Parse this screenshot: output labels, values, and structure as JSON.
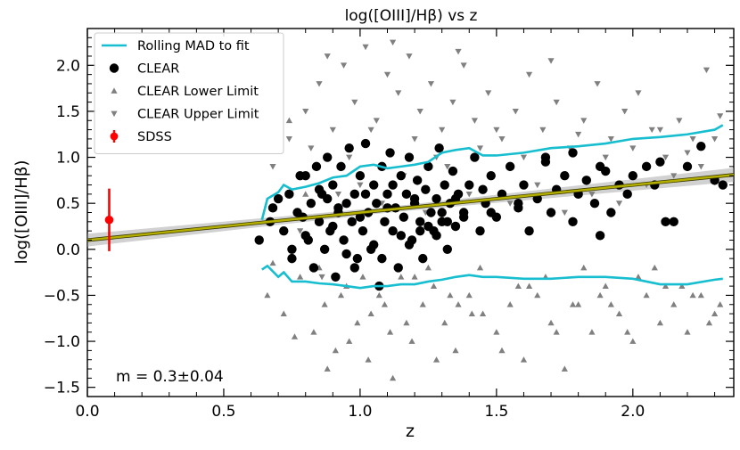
{
  "chart_data": {
    "type": "scatter",
    "title": "log([OIII]/Hβ) vs z",
    "xlabel": "z",
    "ylabel": "log([OIII]/Hβ)",
    "xlim": [
      0.0,
      2.37
    ],
    "ylim": [
      -1.6,
      2.4
    ],
    "x_ticks": [
      0.0,
      0.5,
      1.0,
      1.5,
      2.0
    ],
    "x_tick_labels": [
      "0.0",
      "0.5",
      "1.0",
      "1.5",
      "2.0"
    ],
    "y_ticks": [
      -1.5,
      -1.0,
      -0.5,
      0.0,
      0.5,
      1.0,
      1.5,
      2.0
    ],
    "y_tick_labels": [
      "−1.5",
      "−1.0",
      "−0.5",
      "0.0",
      "0.5",
      "1.0",
      "1.5",
      "2.0"
    ],
    "grid": false,
    "legend_placement": "top-left",
    "annotation": "m = 0.3±0.04",
    "colors": {
      "clear": "#000000",
      "limits": "#808080",
      "rolling_mad": "#17becf",
      "fit": "#b5b000",
      "fit_band": "#9a9a9a",
      "sdss": "#ff0000"
    },
    "legend": [
      {
        "label": "Rolling MAD to fit",
        "marker": "line",
        "color": "#17becf"
      },
      {
        "label": "CLEAR",
        "marker": "circle",
        "color": "#000000"
      },
      {
        "label": "CLEAR Lower Limit",
        "marker": "triangle-up",
        "color": "#808080"
      },
      {
        "label": "CLEAR Upper Limit",
        "marker": "triangle-down",
        "color": "#808080"
      },
      {
        "label": "SDSS",
        "marker": "errorbar",
        "color": "#ff0000"
      }
    ],
    "fit_line": {
      "slope": 0.3,
      "slope_err": 0.04,
      "x": [
        0.0,
        2.37
      ],
      "y": [
        0.1,
        0.81
      ]
    },
    "sdss_point": {
      "x": 0.08,
      "y": 0.32,
      "yerr_low": 0.34,
      "yerr_high": 0.34
    },
    "rolling_mad_upper": {
      "x": [
        0.64,
        0.66,
        0.7,
        0.72,
        0.75,
        0.8,
        0.85,
        0.9,
        0.95,
        1.0,
        1.05,
        1.1,
        1.15,
        1.2,
        1.25,
        1.3,
        1.35,
        1.4,
        1.45,
        1.5,
        1.6,
        1.7,
        1.8,
        1.9,
        2.0,
        2.1,
        2.2,
        2.3,
        2.33
      ],
      "y": [
        0.32,
        0.55,
        0.62,
        0.7,
        0.65,
        0.68,
        0.72,
        0.78,
        0.8,
        0.9,
        0.92,
        0.88,
        0.9,
        0.92,
        0.95,
        1.05,
        1.08,
        1.1,
        1.02,
        1.02,
        1.05,
        1.1,
        1.12,
        1.15,
        1.2,
        1.22,
        1.25,
        1.3,
        1.35
      ]
    },
    "rolling_mad_lower": {
      "x": [
        0.64,
        0.66,
        0.7,
        0.72,
        0.75,
        0.8,
        0.85,
        0.9,
        0.95,
        1.0,
        1.05,
        1.1,
        1.15,
        1.2,
        1.25,
        1.3,
        1.35,
        1.4,
        1.45,
        1.5,
        1.6,
        1.7,
        1.8,
        1.9,
        2.0,
        2.1,
        2.2,
        2.3,
        2.33
      ],
      "y": [
        -0.22,
        -0.18,
        -0.3,
        -0.25,
        -0.35,
        -0.35,
        -0.37,
        -0.38,
        -0.4,
        -0.42,
        -0.4,
        -0.4,
        -0.38,
        -0.38,
        -0.35,
        -0.33,
        -0.3,
        -0.28,
        -0.3,
        -0.3,
        -0.32,
        -0.32,
        -0.3,
        -0.3,
        -0.32,
        -0.38,
        -0.38,
        -0.33,
        -0.32
      ]
    },
    "clear_points": {
      "x": [
        0.63,
        0.67,
        0.7,
        0.72,
        0.74,
        0.75,
        0.77,
        0.79,
        0.8,
        0.81,
        0.82,
        0.83,
        0.84,
        0.85,
        0.86,
        0.87,
        0.88,
        0.89,
        0.9,
        0.91,
        0.92,
        0.93,
        0.94,
        0.95,
        0.96,
        0.97,
        0.98,
        0.99,
        1.0,
        1.01,
        1.02,
        1.03,
        1.04,
        1.05,
        1.06,
        1.07,
        1.08,
        1.09,
        1.1,
        1.11,
        1.12,
        1.13,
        1.14,
        1.15,
        1.16,
        1.17,
        1.18,
        1.19,
        1.2,
        1.21,
        1.22,
        1.23,
        1.24,
        1.25,
        1.26,
        1.27,
        1.28,
        1.29,
        1.3,
        1.31,
        1.32,
        1.33,
        1.34,
        1.35,
        1.36,
        1.38,
        1.4,
        1.42,
        1.44,
        1.46,
        1.48,
        1.5,
        1.52,
        1.55,
        1.58,
        1.6,
        1.62,
        1.65,
        1.68,
        1.7,
        1.72,
        1.75,
        1.78,
        1.8,
        1.83,
        1.86,
        1.88,
        1.9,
        1.92,
        1.95,
        1.98,
        2.0,
        2.05,
        2.08,
        2.1,
        2.15,
        2.2,
        2.25,
        2.3,
        2.33,
        0.68,
        0.8,
        0.9,
        1.0,
        1.1,
        1.2,
        1.3,
        0.95,
        1.05,
        1.15,
        1.25,
        0.85,
        0.75,
        1.35,
        1.45,
        0.92,
        1.02,
        1.12,
        1.22,
        1.32,
        0.98,
        1.08,
        1.18,
        1.28,
        0.88,
        0.78,
        1.38,
        1.48,
        1.58,
        1.68,
        1.78,
        1.88,
        2.12
      ],
      "y": [
        0.1,
        0.3,
        0.55,
        0.2,
        0.6,
        -0.1,
        0.4,
        0.35,
        0.8,
        0.1,
        0.5,
        -0.2,
        0.9,
        0.3,
        0.6,
        0.0,
        1.0,
        0.2,
        0.7,
        -0.3,
        0.4,
        0.9,
        0.1,
        0.5,
        1.1,
        0.3,
        0.6,
        -0.1,
        0.8,
        0.2,
        1.15,
        0.4,
        0.0,
        0.7,
        0.5,
        -0.4,
        0.9,
        0.3,
        0.6,
        1.05,
        0.2,
        0.45,
        -0.2,
        0.8,
        0.35,
        0.6,
        1.0,
        0.1,
        0.5,
        0.75,
        0.3,
        -0.1,
        0.65,
        0.9,
        0.4,
        0.2,
        0.55,
        1.1,
        0.3,
        0.7,
        0.0,
        0.5,
        0.85,
        0.25,
        0.6,
        0.4,
        0.7,
        1.0,
        0.2,
        0.5,
        0.8,
        0.35,
        0.6,
        0.9,
        0.45,
        0.7,
        0.2,
        0.55,
        1.0,
        0.4,
        0.65,
        0.8,
        0.3,
        0.6,
        0.75,
        0.5,
        0.9,
        0.85,
        0.4,
        0.7,
        0.6,
        0.8,
        0.9,
        0.7,
        0.95,
        0.3,
        0.9,
        1.12,
        0.75,
        0.7,
        0.45,
        0.15,
        0.25,
        0.35,
        0.45,
        0.55,
        0.4,
        -0.05,
        0.05,
        0.15,
        0.25,
        0.65,
        0.0,
        0.55,
        0.65,
        0.45,
        0.6,
        0.7,
        0.2,
        0.3,
        -0.2,
        -0.1,
        0.05,
        0.15,
        0.55,
        0.8,
        0.35,
        0.4,
        0.5,
        0.95,
        1.05,
        0.15,
        0.3
      ]
    },
    "lower_limits": {
      "x": [
        0.66,
        0.72,
        0.78,
        0.83,
        0.87,
        0.91,
        0.95,
        0.99,
        1.03,
        1.07,
        1.11,
        1.15,
        1.19,
        1.23,
        1.27,
        1.31,
        1.35,
        1.4,
        1.45,
        1.5,
        1.55,
        1.6,
        1.65,
        1.7,
        1.75,
        1.8,
        1.85,
        1.9,
        1.95,
        2.0,
        2.05,
        2.1,
        2.15,
        2.2,
        2.25,
        2.3,
        0.74,
        0.8,
        0.88,
        0.96,
        1.04,
        1.12,
        1.2,
        1.28,
        1.36,
        1.44,
        1.52,
        1.62,
        1.72,
        1.82,
        1.92,
        2.02,
        2.12,
        2.22,
        2.32,
        0.85,
        0.93,
        1.01,
        1.09,
        1.17,
        1.25,
        1.33,
        1.41,
        1.58,
        1.68,
        1.78,
        1.88,
        1.98,
        2.08,
        2.18,
        2.28,
        0.76,
        0.68
      ],
      "y": [
        -0.5,
        -0.7,
        -0.3,
        -0.9,
        -0.6,
        -1.1,
        -0.4,
        -0.8,
        -1.2,
        -0.5,
        -0.9,
        -0.3,
        -1.0,
        -0.6,
        -0.4,
        -0.8,
        -1.1,
        -0.5,
        -0.7,
        -0.9,
        -0.6,
        -1.2,
        -0.5,
        -0.8,
        -1.3,
        -0.6,
        -0.9,
        -0.4,
        -0.7,
        -1.0,
        -0.5,
        -0.8,
        -0.6,
        -0.9,
        -0.5,
        -0.7,
        1.4,
        0.6,
        -1.3,
        -1.0,
        -0.7,
        -1.4,
        -0.3,
        -1.2,
        -0.6,
        -0.2,
        -1.1,
        -0.4,
        -0.9,
        -0.2,
        -0.6,
        -0.3,
        -0.4,
        -0.5,
        -0.6,
        -0.2,
        -0.5,
        -0.3,
        -0.6,
        -0.8,
        -0.2,
        -0.5,
        -0.7,
        -0.4,
        -0.3,
        -0.6,
        -0.5,
        -0.9,
        -0.2,
        -0.4,
        -0.8,
        -0.95,
        -0.15
      ]
    },
    "upper_limits": {
      "x": [
        0.68,
        0.74,
        0.8,
        0.85,
        0.9,
        0.94,
        0.98,
        1.02,
        1.06,
        1.1,
        1.14,
        1.18,
        1.22,
        1.26,
        1.3,
        1.34,
        1.38,
        1.42,
        1.47,
        1.52,
        1.57,
        1.62,
        1.67,
        1.72,
        1.77,
        1.82,
        1.87,
        1.92,
        1.97,
        2.02,
        2.07,
        2.12,
        2.17,
        2.22,
        2.27,
        2.32,
        0.82,
        0.88,
        0.96,
        1.04,
        1.12,
        1.2,
        1.28,
        1.36,
        1.44,
        1.5,
        1.6,
        1.7,
        1.8,
        1.9,
        2.0,
        2.1,
        2.2,
        2.3,
        0.92,
        1.0,
        1.08,
        1.16,
        1.24,
        1.32,
        1.4,
        1.55,
        1.65,
        1.75,
        1.85,
        1.95,
        2.05,
        2.15,
        2.25,
        0.78,
        0.86
      ],
      "y": [
        0.9,
        1.2,
        1.5,
        1.8,
        1.3,
        2.0,
        1.6,
        2.2,
        1.4,
        1.9,
        1.7,
        2.1,
        1.5,
        1.8,
        1.3,
        1.6,
        2.0,
        1.4,
        1.7,
        1.2,
        1.5,
        1.9,
        1.3,
        1.6,
        1.1,
        1.4,
        1.8,
        1.2,
        1.5,
        1.7,
        1.3,
        1.0,
        1.4,
        1.2,
        1.95,
        1.45,
        1.1,
        2.1,
        1.0,
        1.3,
        2.25,
        1.2,
        1.0,
        2.15,
        1.1,
        1.3,
        1.0,
        2.05,
        1.25,
        1.0,
        1.1,
        1.3,
        1.05,
        1.2,
        0.6,
        0.7,
        0.5,
        0.8,
        0.4,
        0.9,
        0.6,
        0.5,
        0.7,
        0.4,
        0.6,
        0.5,
        0.7,
        0.8,
        0.9,
        0.2,
        -0.3
      ]
    }
  }
}
